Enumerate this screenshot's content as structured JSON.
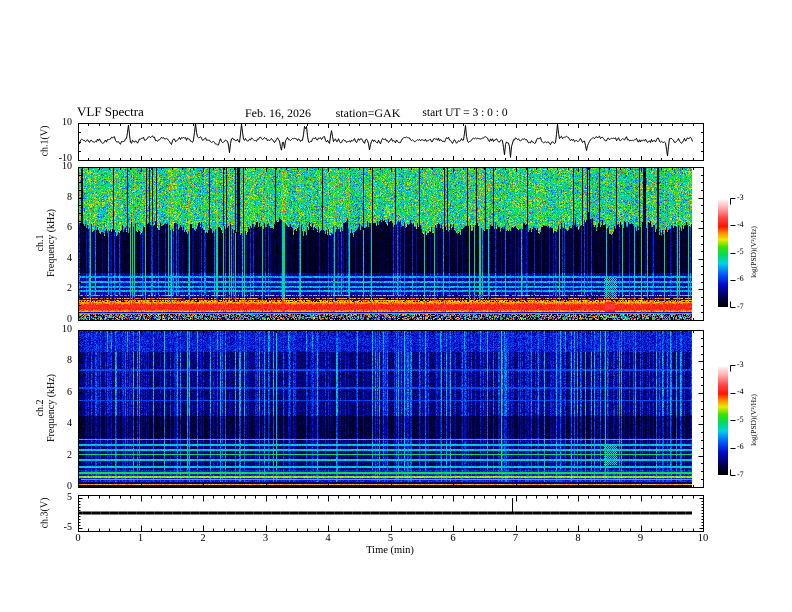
{
  "header": {
    "title": "VLF Spectra",
    "date": "Feb. 16, 2026",
    "station": "station=GAK",
    "start_ut": "start UT =  3 : 0  : 0"
  },
  "time_axis": {
    "label": "Time (min)",
    "ticks": [
      "0",
      "1",
      "2",
      "3",
      "4",
      "5",
      "6",
      "7",
      "8",
      "9",
      "10"
    ],
    "minor_per_major": 6,
    "data_end_min": 9.83
  },
  "panel_ch1_wave": {
    "ylabel": "ch.1(V)",
    "yticks": [
      "10",
      "-10"
    ],
    "ylim": [
      -10,
      10
    ]
  },
  "panel_spec1": {
    "ylabel_ch": "ch.1",
    "ylabel_axis": "Frequency (kHz)",
    "yticks": [
      "0",
      "2",
      "4",
      "6",
      "8",
      "10"
    ]
  },
  "panel_spec2": {
    "ylabel_ch": "ch.2",
    "ylabel_axis": "Frequency (kHz)",
    "yticks": [
      "0",
      "2",
      "4",
      "6",
      "8",
      "10"
    ]
  },
  "panel_ch3": {
    "ylabel": "ch.3(V)",
    "yticks": [
      "5",
      "-5"
    ],
    "ylim": [
      -6,
      6
    ]
  },
  "colorbar": {
    "label": "log(PSD)(V²/Hz)",
    "ticks": [
      "-3",
      "-4",
      "-5",
      "-6",
      "-7"
    ],
    "zlim": [
      -7,
      -3
    ],
    "gradient_bottom_to_top": [
      "#000000",
      "#000046",
      "#000ac8",
      "#005aff",
      "#00d2e6",
      "#00dc5a",
      "#3ce100",
      "#ebeb00",
      "#ff8c00",
      "#ff1400",
      "#ff4646",
      "#ffa0a0",
      "#ffffff"
    ]
  },
  "chart_data": [
    {
      "type": "line",
      "name": "ch.1 voltage time series",
      "xlabel": "Time (min)",
      "xlim": [
        0,
        10
      ],
      "ylabel": "ch.1(V)",
      "ylim": [
        -10,
        10
      ],
      "description": "continuous broadband noise trace centred slightly above 0 V with ~±2 V fluctuations and sporadic impulsive spikes reaching about ±8 V; record ends near 9.83 min"
    },
    {
      "type": "heatmap",
      "name": "ch.1 VLF spectrogram",
      "xlim": [
        0,
        10
      ],
      "ylim_kHz": [
        0,
        10
      ],
      "zlabel": "log(PSD)(V²/Hz)",
      "zlim": [
        -7,
        -3
      ],
      "features": [
        "bright green/yellow hiss speckle above a jagged ~5-7.5 kHz boundary (log PSD ~ -5.5 to -4.6)",
        "very dark (log PSD ~ -7) wedge-shaped region 3 kHz up to the jagged boundary",
        "dense vertical sferic streaks (cyan/green) crossing all frequencies",
        "blue speckle 1.6-3 kHz with horizontal cyan lines near 1.9, 2.1, 2.5 and 2.8 kHz",
        "patchy dark-red rows 1.1-1.6 kHz",
        "intense yellow-orange-red hiss band 0.5-1.1 kHz peaking near log PSD -4 with occasional red blobs (e.g. near 8.5 min)",
        "thin cyan-green line near 0.4 kHz and mixed red/dark speckle below 0.3 kHz",
        "dotted cyan interference patch near 8.5 min between 1.4 and 2.7 kHz"
      ]
    },
    {
      "type": "heatmap",
      "name": "ch.2 VLF spectrogram",
      "xlim": [
        0,
        10
      ],
      "ylim_kHz": [
        0,
        10
      ],
      "zlabel": "log(PSD)(V²/Hz)",
      "zlim": [
        -7,
        -3
      ],
      "features": [
        "overall blue speckle (log PSD ~ -6.6 to -6) with dense vertical cyan sferic streaks",
        "more uniform blue band above ~8.6 kHz",
        "darker region 3-4.5 kHz",
        "horizontal cyan/green lines near 1.25, 1.7, 2.05, 2.35, 2.65 and 3.0 kHz",
        "bright green line ~0.85 kHz, yellow-green line ~0.63 kHz, cyan line ~0.45 kHz",
        "red row near 0.15 kHz at the bottom edge",
        "dotted cyan interference patch near 8.5 min between 1.4 and 2.7 kHz"
      ]
    },
    {
      "type": "line",
      "name": "ch.3 voltage time series",
      "xlabel": "Time (min)",
      "xlim": [
        0,
        10
      ],
      "ylabel": "ch.3(V)",
      "ylim": [
        -6,
        6
      ],
      "description": "flat thick dark trace at 0 V for the whole record with one small upward spike near 6.95 min; record ends near 9.83 min"
    }
  ]
}
